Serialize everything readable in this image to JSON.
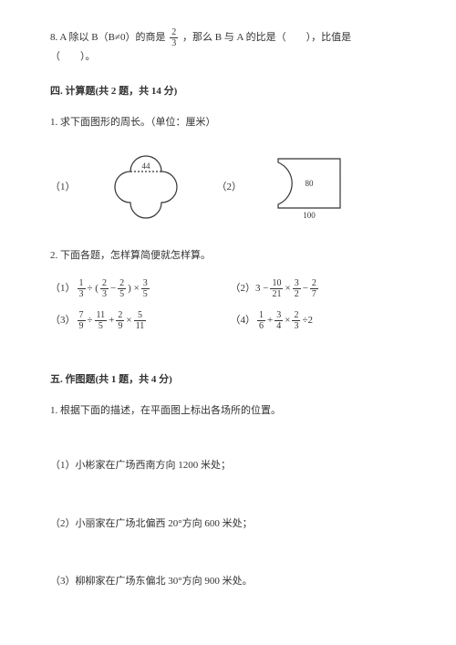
{
  "q8": {
    "prefix": "8. A 除以 B（B≠0）的商是",
    "frac": {
      "num": "2",
      "den": "3"
    },
    "mid": "，那么 B 与 A 的比是（　　），比值是",
    "end": "（　　）。"
  },
  "section4": {
    "title": "四. 计算题(共 2 题，共 14 分)",
    "q1": "1. 求下面图形的周长。（单位：厘米）",
    "fig1": {
      "label": "（1）",
      "dim_top": "44",
      "path_color": "#333333",
      "fill": "none",
      "stroke_width": 1.2
    },
    "fig2": {
      "label": "（2）",
      "dim_h": "80",
      "dim_w": "100",
      "path_color": "#333333",
      "stroke_width": 1.2
    },
    "q2": "2. 下面各题，怎样算简便就怎样算。",
    "calc": [
      {
        "n": "（1）",
        "parts": [
          {
            "f": [
              "1",
              "3"
            ]
          },
          {
            "t": " ÷ ("
          },
          {
            "f": [
              "2",
              "3"
            ]
          },
          {
            "t": " − "
          },
          {
            "f": [
              "2",
              "5"
            ]
          },
          {
            "t": " ) × "
          },
          {
            "f": [
              "3",
              "5"
            ]
          }
        ]
      },
      {
        "n": "（2）",
        "parts": [
          {
            "t": "3 − "
          },
          {
            "f": [
              "10",
              "21"
            ]
          },
          {
            "t": " × "
          },
          {
            "f": [
              "3",
              "2"
            ]
          },
          {
            "t": " − "
          },
          {
            "f": [
              "2",
              "7"
            ]
          }
        ]
      },
      {
        "n": "（3）",
        "parts": [
          {
            "f": [
              "7",
              "9"
            ]
          },
          {
            "t": " ÷ "
          },
          {
            "f": [
              "11",
              "5"
            ]
          },
          {
            "t": " + "
          },
          {
            "f": [
              "2",
              "9"
            ]
          },
          {
            "t": " × "
          },
          {
            "f": [
              "5",
              "11"
            ]
          }
        ]
      },
      {
        "n": "（4）",
        "parts": [
          {
            "f": [
              "1",
              "6"
            ]
          },
          {
            "t": " + "
          },
          {
            "f": [
              "3",
              "4"
            ]
          },
          {
            "t": " × "
          },
          {
            "f": [
              "2",
              "3"
            ]
          },
          {
            "t": " ÷2"
          }
        ]
      }
    ]
  },
  "section5": {
    "title": "五. 作图题(共 1 题，共 4 分)",
    "q1": "1. 根据下面的描述，在平面图上标出各场所的位置。",
    "subs": [
      "（1）小彬家在广场西南方向 1200 米处；",
      "（2）小丽家在广场北偏西 20°方向 600 米处；",
      "（3）柳柳家在广场东偏北 30°方向 900 米处。"
    ]
  }
}
